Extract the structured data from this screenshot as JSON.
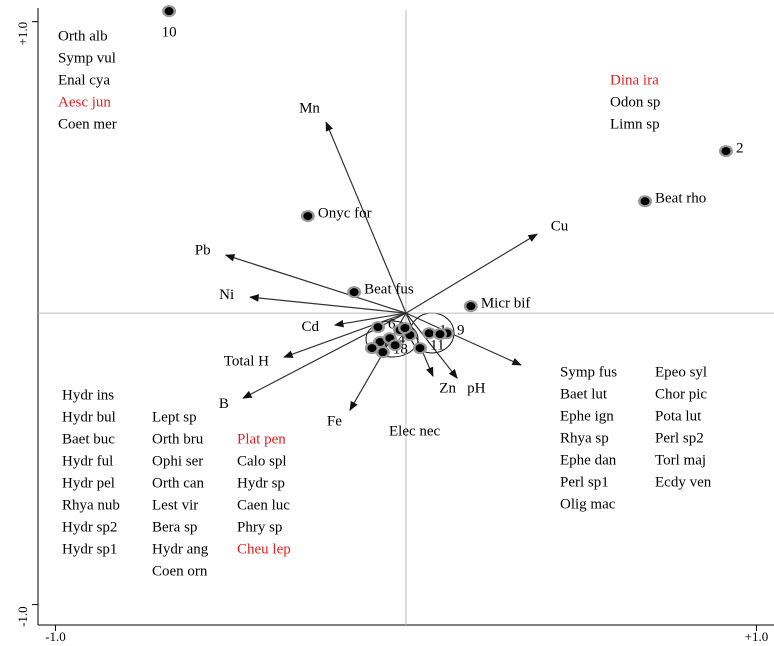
{
  "chart_data": {
    "type": "scatter",
    "xlim": [
      -1.05,
      1.05
    ],
    "ylim": [
      -1.07,
      1.04
    ],
    "xticks": [
      {
        "value": -1,
        "label": "-1.0"
      },
      {
        "value": 1,
        "label": "+1.0"
      }
    ],
    "yticks": [
      {
        "value": -1,
        "label": "-1.0"
      },
      {
        "value": 1,
        "label": "+1.0"
      }
    ],
    "point_color": "#000000",
    "points": [
      {
        "label": "10",
        "x": -0.676,
        "y": 1.036
      },
      {
        "label": "2",
        "x": 0.913,
        "y": 0.556
      },
      {
        "label": "Beat rho",
        "x": 0.682,
        "y": 0.384
      },
      {
        "label": "Onyc for",
        "x": -0.28,
        "y": 0.333
      },
      {
        "label": "Beat fus",
        "x": -0.148,
        "y": 0.072
      },
      {
        "label": "Micr bif",
        "x": 0.185,
        "y": 0.024
      },
      {
        "label": "1",
        "x": 0.066,
        "y": -0.069
      },
      {
        "label": "6",
        "x": -0.08,
        "y": -0.048
      },
      {
        "label": "14",
        "x": -0.074,
        "y": -0.099
      },
      {
        "label": "15",
        "x": -0.097,
        "y": -0.12
      },
      {
        "label": "18",
        "x": -0.066,
        "y": -0.134
      },
      {
        "label": "11",
        "x": 0.04,
        "y": -0.12
      },
      {
        "label": "9",
        "x": 0.117,
        "y": -0.069
      },
      {
        "label": null,
        "x": -0.017,
        "y": -0.058
      },
      {
        "label": null,
        "x": 0.011,
        "y": -0.075
      },
      {
        "label": null,
        "x": -0.046,
        "y": -0.086
      },
      {
        "label": null,
        "x": 0.097,
        "y": -0.072
      },
      {
        "label": null,
        "x": -0.031,
        "y": -0.11
      },
      {
        "label": null,
        "x": -0.003,
        "y": -0.051
      }
    ],
    "arrow_color": "#333333",
    "arrows": [
      {
        "name": "Mn",
        "x": -0.228,
        "y": 0.655
      },
      {
        "name": "Pb",
        "x": -0.514,
        "y": 0.199
      },
      {
        "name": "Ni",
        "x": -0.445,
        "y": 0.055
      },
      {
        "name": "Cd",
        "x": -0.203,
        "y": -0.041
      },
      {
        "name": "Total H",
        "x": -0.348,
        "y": -0.151
      },
      {
        "name": "B",
        "x": -0.465,
        "y": -0.292
      },
      {
        "name": "Fe",
        "x": -0.16,
        "y": -0.333
      },
      {
        "name": "Zn",
        "x": 0.077,
        "y": -0.216
      },
      {
        "name": "pH",
        "x": 0.146,
        "y": -0.223
      },
      {
        "name": null,
        "x": 0.328,
        "y": -0.178
      },
      {
        "name": "Cu",
        "x": 0.374,
        "y": 0.271
      }
    ],
    "species_groups": [
      {
        "items": [
          {
            "text": "Orth alb",
            "color": "#000000"
          },
          {
            "text": "Symp vul",
            "color": "#000000"
          },
          {
            "text": "Enal cya",
            "color": "#000000"
          },
          {
            "text": "Aesc jun",
            "color": "#e02020"
          },
          {
            "text": "Coen mer",
            "color": "#000000"
          }
        ]
      },
      {
        "items": [
          {
            "text": "Dina ira",
            "color": "#e02020"
          },
          {
            "text": "Odon sp",
            "color": "#000000"
          },
          {
            "text": "Limn sp",
            "color": "#000000"
          }
        ]
      },
      {
        "items": [
          {
            "text": "Hydr ins",
            "color": "#000000"
          },
          {
            "text": "Hydr bul",
            "color": "#000000"
          },
          {
            "text": "Baet buc",
            "color": "#000000"
          },
          {
            "text": "Hydr ful",
            "color": "#000000"
          },
          {
            "text": "Hydr pel",
            "color": "#000000"
          },
          {
            "text": "Rhya nub",
            "color": "#000000"
          },
          {
            "text": "Hydr sp2",
            "color": "#000000"
          },
          {
            "text": "Hydr sp1",
            "color": "#000000"
          }
        ]
      },
      {
        "items": [
          {
            "text": "Lept sp",
            "color": "#000000"
          },
          {
            "text": "Orth bru",
            "color": "#000000"
          },
          {
            "text": "Ophi ser",
            "color": "#000000"
          },
          {
            "text": "Orth can",
            "color": "#000000"
          },
          {
            "text": "Lest vir",
            "color": "#000000"
          },
          {
            "text": "Bera sp",
            "color": "#000000"
          },
          {
            "text": "Hydr ang",
            "color": "#000000"
          },
          {
            "text": "Coen orn",
            "color": "#000000"
          }
        ]
      },
      {
        "items": [
          {
            "text": "Plat pen",
            "color": "#e02020"
          },
          {
            "text": "Calo spl",
            "color": "#000000"
          },
          {
            "text": "Hydr sp",
            "color": "#000000"
          },
          {
            "text": "Caen luc",
            "color": "#000000"
          },
          {
            "text": "Phry sp",
            "color": "#000000"
          },
          {
            "text": "Cheu lep",
            "color": "#e02020"
          }
        ]
      },
      {
        "items": [
          {
            "text": "Symp fus",
            "color": "#000000"
          },
          {
            "text": "Baet lut",
            "color": "#000000"
          },
          {
            "text": "Ephe ign",
            "color": "#000000"
          },
          {
            "text": "Rhya sp",
            "color": "#000000"
          },
          {
            "text": "Ephe dan",
            "color": "#000000"
          },
          {
            "text": "Perl sp1",
            "color": "#000000"
          },
          {
            "text": "Olig mac",
            "color": "#000000"
          }
        ]
      },
      {
        "items": [
          {
            "text": "Epeo syl",
            "color": "#000000"
          },
          {
            "text": "Chor pic",
            "color": "#000000"
          },
          {
            "text": "Pota lut",
            "color": "#000000"
          },
          {
            "text": "Perl sp2",
            "color": "#000000"
          },
          {
            "text": "Torl maj",
            "color": "#000000"
          },
          {
            "text": "Ecdy ven",
            "color": "#000000"
          }
        ]
      },
      {
        "items": [
          {
            "text": "Elec nec",
            "color": "#000000"
          }
        ]
      }
    ]
  }
}
